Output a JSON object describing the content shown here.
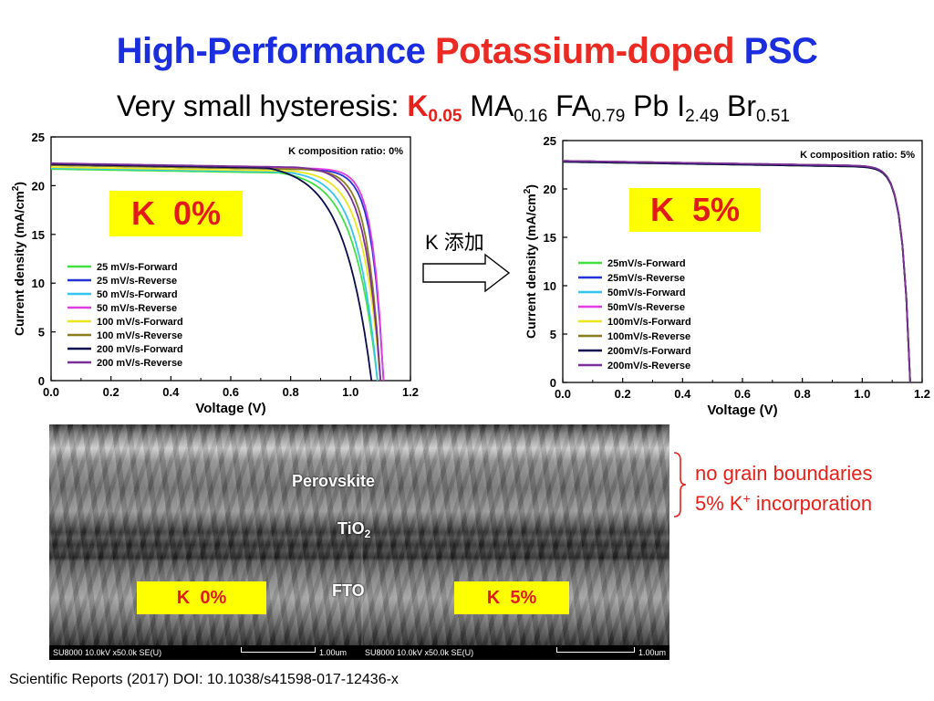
{
  "title": {
    "part1": "High-Performance",
    "part2": "Potassium-doped",
    "part3": "PSC"
  },
  "subtitle": {
    "prefix": "Very small hysteresis: ",
    "k": "K",
    "k_sub": "0.05",
    "ma": "MA",
    "ma_sub": "0.16",
    "fa": "FA",
    "fa_sub": "0.79",
    "pb": "Pb",
    "i": "I",
    "i_sub": "2.49",
    "br": "Br",
    "br_sub": "0.51"
  },
  "colors": {
    "title_blue": "#1a2ee0",
    "title_red": "#ec2a24",
    "highlight_yellow": "#ffff00",
    "label_red": "#e31a1a"
  },
  "arrow": {
    "label": "K 添加"
  },
  "chart_data": [
    {
      "type": "line",
      "annotation": "K composition ratio: 0%",
      "sign_label": "K  0%",
      "xlabel": "Voltage (V)",
      "ylabel_main": "Current density (mA/cm",
      "ylabel_sup": "2",
      "ylabel_end": ")",
      "xlim": [
        0,
        1.2
      ],
      "ylim": [
        0,
        25
      ],
      "x_ticks": [
        "0.0",
        "0.2",
        "0.4",
        "0.6",
        "0.8",
        "1.0",
        "1.2"
      ],
      "y_ticks": [
        "0",
        "5",
        "10",
        "15",
        "20",
        "25"
      ],
      "legend_position": "bottom-left",
      "series": [
        {
          "name": "25 mV/s-Forward",
          "color": "#43e043",
          "jsc": 21.7,
          "voc": 1.09,
          "knee": 0.76,
          "sharp": 4.2
        },
        {
          "name": "25 mV/s-Reverse",
          "color": "#2433d6",
          "jsc": 22.1,
          "voc": 1.11,
          "knee": 0.86,
          "sharp": 6.5
        },
        {
          "name": "50 mV/s-Forward",
          "color": "#35c6f0",
          "jsc": 21.8,
          "voc": 1.09,
          "knee": 0.78,
          "sharp": 4.6
        },
        {
          "name": "50 mV/s-Reverse",
          "color": "#e23de2",
          "jsc": 22.2,
          "voc": 1.11,
          "knee": 0.87,
          "sharp": 6.8
        },
        {
          "name": "100 mV/s-Forward",
          "color": "#ece61e",
          "jsc": 21.9,
          "voc": 1.1,
          "knee": 0.8,
          "sharp": 5.0
        },
        {
          "name": "100 mV/s-Reverse",
          "color": "#8a7d1c",
          "jsc": 22.1,
          "voc": 1.1,
          "knee": 0.84,
          "sharp": 6.0
        },
        {
          "name": "200 mV/s-Forward",
          "color": "#0b0b4e",
          "jsc": 22.2,
          "voc": 1.07,
          "knee": 0.72,
          "sharp": 3.8
        },
        {
          "name": "200 mV/s-Reverse",
          "color": "#7a2f99",
          "jsc": 22.3,
          "voc": 1.1,
          "knee": 0.82,
          "sharp": 5.5
        }
      ]
    },
    {
      "type": "line",
      "annotation": "K composition ratio: 5%",
      "sign_label": "K  5%",
      "xlabel": "Voltage (V)",
      "ylabel_main": "Current density (mA/cm",
      "ylabel_sup": "2",
      "ylabel_end": ")",
      "xlim": [
        0,
        1.2
      ],
      "ylim": [
        0,
        25
      ],
      "x_ticks": [
        "0.0",
        "0.2",
        "0.4",
        "0.6",
        "0.8",
        "1.0",
        "1.2"
      ],
      "y_ticks": [
        "0",
        "5",
        "10",
        "15",
        "20",
        "25"
      ],
      "legend_position": "bottom-left",
      "series": [
        {
          "name": "25mV/s-Forward",
          "color": "#43e043",
          "jsc": 22.8,
          "voc": 1.16,
          "knee": 0.93,
          "sharp": 9
        },
        {
          "name": "25mV/s-Reverse",
          "color": "#2433d6",
          "jsc": 22.9,
          "voc": 1.16,
          "knee": 0.93,
          "sharp": 9
        },
        {
          "name": "50mV/s-Forward",
          "color": "#35c6f0",
          "jsc": 22.8,
          "voc": 1.16,
          "knee": 0.93,
          "sharp": 9
        },
        {
          "name": "50mV/s-Reverse",
          "color": "#e23de2",
          "jsc": 22.9,
          "voc": 1.16,
          "knee": 0.93,
          "sharp": 9
        },
        {
          "name": "100mV/s-Forward",
          "color": "#ece61e",
          "jsc": 22.8,
          "voc": 1.16,
          "knee": 0.93,
          "sharp": 9
        },
        {
          "name": "100mV/s-Reverse",
          "color": "#8a7d1c",
          "jsc": 22.9,
          "voc": 1.16,
          "knee": 0.93,
          "sharp": 9
        },
        {
          "name": "200mV/s-Forward",
          "color": "#0b0b4e",
          "jsc": 22.8,
          "voc": 1.16,
          "knee": 0.93,
          "sharp": 9
        },
        {
          "name": "200mV/s-Reverse",
          "color": "#7a2f99",
          "jsc": 22.9,
          "voc": 1.16,
          "knee": 0.93,
          "sharp": 9
        }
      ]
    }
  ],
  "sem": {
    "labels": {
      "perovskite": "Perovskite",
      "tio2": "TiO",
      "tio2_sub": "2",
      "fto": "FTO"
    },
    "left_label": "K  0%",
    "right_label": "K  5%",
    "left_info": "SU8000 10.0kV x50.0k SE(U)",
    "left_scale": "1.00um",
    "right_info": "SU8000 10.0kV x50.0k SE(U)",
    "right_scale": "1.00um"
  },
  "notes": {
    "line1": "no grain boundaries",
    "line2_prefix": "5% K",
    "line2_sup": "+",
    "line2_suffix": " incorporation"
  },
  "citation": "Scientific Reports (2017) DOI: 10.1038/s41598-017-12436-x"
}
